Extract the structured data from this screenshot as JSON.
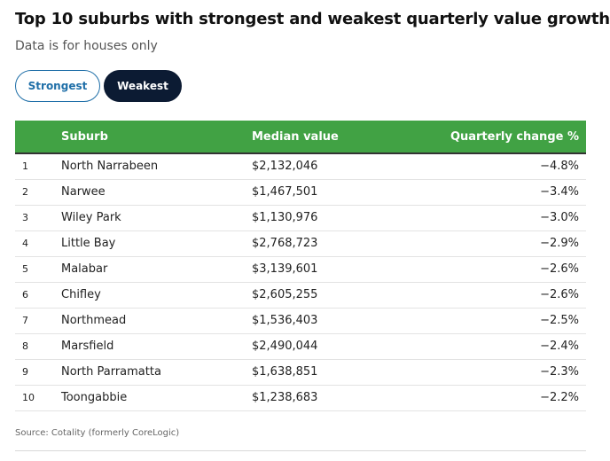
{
  "title": "Top 10 suburbs with strongest and weakest quarterly value growth",
  "subtitle": "Data is for houses only",
  "tabs": [
    {
      "label": "Strongest",
      "active": false
    },
    {
      "label": "Weakest",
      "active": true
    }
  ],
  "colors": {
    "header_green": "#41a244",
    "active_tab": "#0c1b33",
    "inactive_tab_text": "#1f6fa8"
  },
  "chart_data": {
    "type": "table",
    "columns": [
      "",
      "Suburb",
      "Median value",
      "Quarterly change %"
    ],
    "rows": [
      [
        "1",
        "North Narrabeen",
        "$2,132,046",
        "−4.8%"
      ],
      [
        "2",
        "Narwee",
        "$1,467,501",
        "−3.4%"
      ],
      [
        "3",
        "Wiley Park",
        "$1,130,976",
        "−3.0%"
      ],
      [
        "4",
        "Little Bay",
        "$2,768,723",
        "−2.9%"
      ],
      [
        "5",
        "Malabar",
        "$3,139,601",
        "−2.6%"
      ],
      [
        "6",
        "Chifley",
        "$2,605,255",
        "−2.6%"
      ],
      [
        "7",
        "Northmead",
        "$1,536,403",
        "−2.5%"
      ],
      [
        "8",
        "Marsfield",
        "$2,490,044",
        "−2.4%"
      ],
      [
        "9",
        "North Parramatta",
        "$1,638,851",
        "−2.3%"
      ],
      [
        "10",
        "Toongabbie",
        "$1,238,683",
        "−2.2%"
      ]
    ]
  },
  "source": "Source: Cotality (formerly CoreLogic)"
}
